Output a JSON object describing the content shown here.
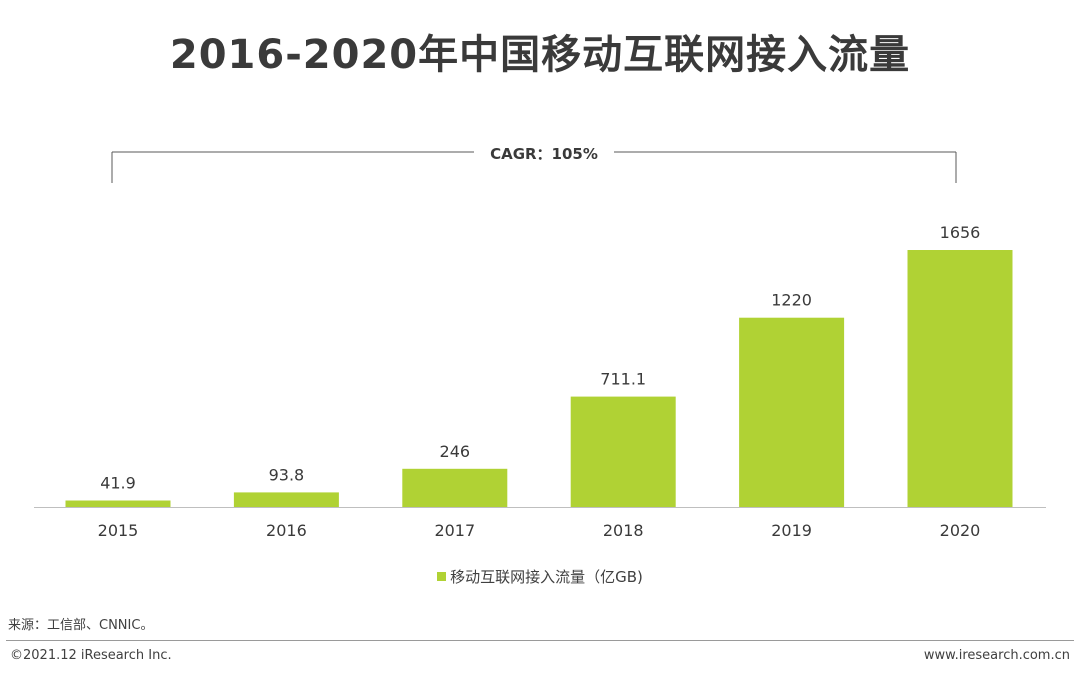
{
  "title": "2016-2020年中国移动互联网接入流量",
  "cagr_label": "CAGR：105%",
  "legend": "移动互联网接入流量（亿GB)",
  "source": "来源：工信部、CNNIC。",
  "footer": {
    "copyright": "©2021.12 iResearch Inc.",
    "website": "www.iresearch.com.cn"
  },
  "colors": {
    "bar": "#b0d234",
    "text": "#3a3a3a",
    "axis": "#bfbfbf",
    "bracket": "#595959"
  },
  "chart_data": {
    "type": "bar",
    "title": "2016-2020年中国移动互联网接入流量",
    "categories": [
      "2015",
      "2016",
      "2017",
      "2018",
      "2019",
      "2020"
    ],
    "series": [
      {
        "name": "移动互联网接入流量（亿GB)",
        "values": [
          41.9,
          93.8,
          246,
          711.1,
          1220,
          1656
        ]
      }
    ],
    "data_labels": [
      "41.9",
      "93.8",
      "246",
      "711.1",
      "1220",
      "1656"
    ],
    "ylim": [
      0,
      1656
    ],
    "grid": false,
    "legend_position": "bottom",
    "annotation": "CAGR：105%"
  }
}
